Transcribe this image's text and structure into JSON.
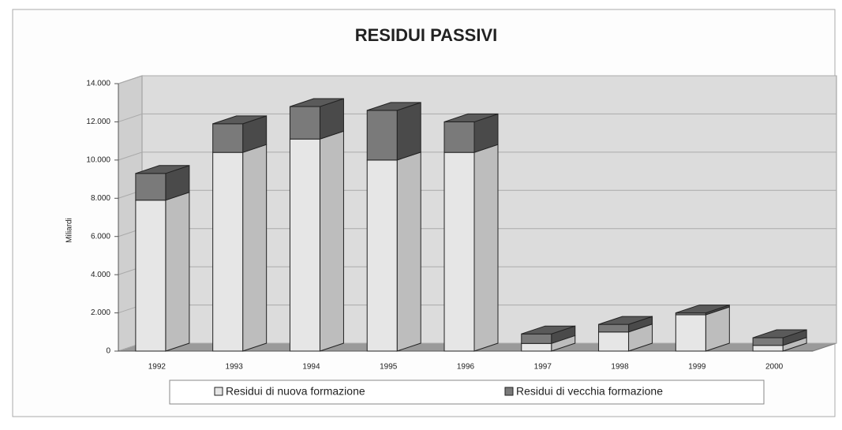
{
  "chart_data": {
    "type": "bar3d_stacked",
    "title": "RESIDUI PASSIVI",
    "y_label": "Miliardi",
    "categories": [
      "1992",
      "1993",
      "1994",
      "1995",
      "1996",
      "1997",
      "1998",
      "1999",
      "2000"
    ],
    "series": [
      {
        "name": "Residui di nuova formazione",
        "color": "#e6e6e6",
        "values": [
          7900,
          10400,
          11100,
          10000,
          10400,
          400,
          1000,
          1900,
          300
        ]
      },
      {
        "name": "Residui di vecchia formazione",
        "color": "#7a7a7a",
        "values": [
          1400,
          1500,
          1700,
          2600,
          1600,
          500,
          400,
          100,
          400
        ]
      }
    ],
    "ylim": [
      0,
      14000
    ],
    "yticks": [
      0,
      {
        "value": 2000,
        "label": "2.000"
      },
      {
        "value": 4000,
        "label": "4.000"
      },
      {
        "value": 6000,
        "label": "6.000"
      },
      {
        "value": 8000,
        "label": "8.000"
      },
      {
        "value": 10000,
        "label": "10.000"
      },
      {
        "value": 12000,
        "label": "12.000"
      },
      {
        "value": 14000,
        "label": "14.000"
      }
    ],
    "grid": true,
    "legend": "bottom"
  }
}
